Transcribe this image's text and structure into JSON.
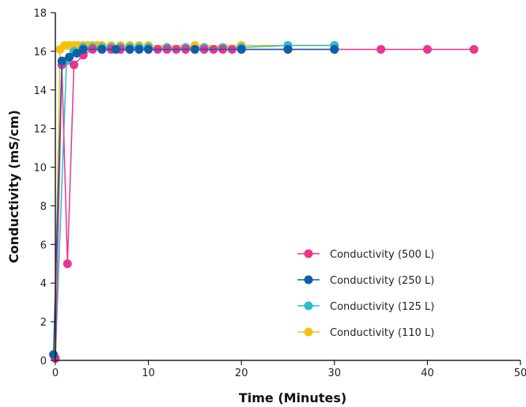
{
  "chart_data": {
    "type": "line",
    "xlabel": "Time (Minutes)",
    "ylabel": "Conductivity (mS/cm)",
    "xlim": [
      0,
      50
    ],
    "ylim": [
      0,
      18
    ],
    "x_ticks": [
      0,
      10,
      20,
      30,
      40,
      50
    ],
    "y_ticks": [
      0,
      2,
      4,
      6,
      8,
      10,
      12,
      14,
      16,
      18
    ],
    "grid": false,
    "legend_position": "bottom-right",
    "series": [
      {
        "name": "Conductivity (500 L)",
        "color": "#e8358e",
        "points": [
          [
            0,
            0.1
          ],
          [
            0.7,
            15.3
          ],
          [
            1.3,
            5.0
          ],
          [
            2,
            15.3
          ],
          [
            3,
            15.8
          ],
          [
            4,
            16.1
          ],
          [
            5,
            16.1
          ],
          [
            6,
            16.1
          ],
          [
            7,
            16.1
          ],
          [
            8,
            16.1
          ],
          [
            9,
            16.1
          ],
          [
            10,
            16.1
          ],
          [
            11,
            16.1
          ],
          [
            12,
            16.1
          ],
          [
            13,
            16.1
          ],
          [
            14,
            16.1
          ],
          [
            15,
            16.1
          ],
          [
            16,
            16.1
          ],
          [
            17,
            16.1
          ],
          [
            18,
            16.1
          ],
          [
            19,
            16.1
          ],
          [
            20,
            16.1
          ],
          [
            25,
            16.1
          ],
          [
            30,
            16.1
          ],
          [
            35,
            16.1
          ],
          [
            40,
            16.1
          ],
          [
            45,
            16.1
          ]
        ]
      },
      {
        "name": "Conductivity (250 L)",
        "color": "#0f5ea8",
        "points": [
          [
            -0.2,
            0.3
          ],
          [
            0.7,
            15.5
          ],
          [
            1.5,
            15.7
          ],
          [
            2.3,
            15.9
          ],
          [
            3,
            16.1
          ],
          [
            5,
            16.1
          ],
          [
            6.5,
            16.1
          ],
          [
            8,
            16.1
          ],
          [
            9,
            16.1
          ],
          [
            10,
            16.1
          ],
          [
            15,
            16.1
          ],
          [
            20,
            16.1
          ],
          [
            25,
            16.1
          ],
          [
            30,
            16.1
          ]
        ]
      },
      {
        "name": "Conductivity (125 L)",
        "color": "#29bfcc",
        "points": [
          [
            0,
            0.1
          ],
          [
            1.2,
            15.5
          ],
          [
            2,
            16.0
          ],
          [
            3,
            16.2
          ],
          [
            4,
            16.2
          ],
          [
            5,
            16.2
          ],
          [
            6,
            16.2
          ],
          [
            7,
            16.2
          ],
          [
            8,
            16.2
          ],
          [
            9,
            16.2
          ],
          [
            10,
            16.2
          ],
          [
            12,
            16.2
          ],
          [
            14,
            16.2
          ],
          [
            16,
            16.2
          ],
          [
            18,
            16.2
          ],
          [
            20,
            16.2
          ],
          [
            25,
            16.3
          ],
          [
            30,
            16.3
          ]
        ]
      },
      {
        "name": "Conductivity (110 L)",
        "color": "#f5c211",
        "points": [
          [
            -0.1,
            0.2
          ],
          [
            0.5,
            16.1
          ],
          [
            1,
            16.3
          ],
          [
            1.5,
            16.3
          ],
          [
            2,
            16.3
          ],
          [
            2.5,
            16.3
          ],
          [
            3,
            16.3
          ],
          [
            3.5,
            16.3
          ],
          [
            4,
            16.3
          ],
          [
            4.5,
            16.3
          ],
          [
            5,
            16.3
          ],
          [
            6,
            16.3
          ],
          [
            7,
            16.3
          ],
          [
            8,
            16.3
          ],
          [
            9,
            16.3
          ],
          [
            10,
            16.3
          ],
          [
            15,
            16.3
          ],
          [
            20,
            16.3
          ],
          [
            25,
            16.3
          ],
          [
            30,
            16.3
          ]
        ]
      }
    ]
  }
}
